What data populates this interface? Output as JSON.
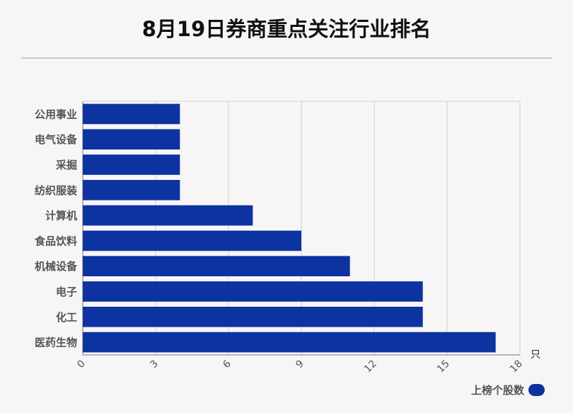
{
  "title": "8月19日券商重点关注行业排名",
  "chart_data": {
    "type": "bar",
    "orientation": "horizontal",
    "categories": [
      "公用事业",
      "电气设备",
      "采掘",
      "纺织服装",
      "计算机",
      "食品饮料",
      "机械设备",
      "电子",
      "化工",
      "医药生物"
    ],
    "series": [
      {
        "name": "上榜个股数",
        "values": [
          4,
          4,
          4,
          4,
          7,
          9,
          11,
          14,
          14,
          17
        ],
        "color": "#0d33a0"
      }
    ],
    "xlim": [
      0,
      18
    ],
    "xticks": [
      "0",
      "3",
      "6",
      "9",
      "12",
      "15",
      "18"
    ],
    "xunit": "只",
    "grid": true,
    "legend": "bottom-right"
  }
}
